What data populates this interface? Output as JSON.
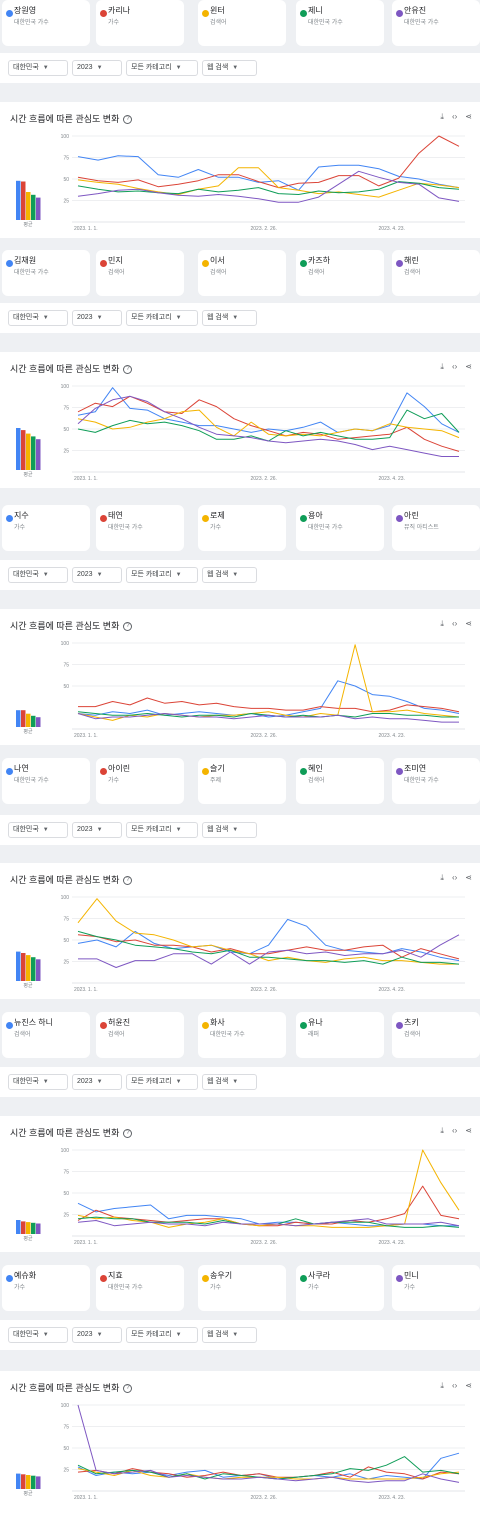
{
  "filters": {
    "region": "대한민국",
    "year": "2023",
    "category": "모든 카테고리",
    "search_type": "웹 검색"
  },
  "section_title": "시간 흐름에 따른 관심도 변화",
  "avg_label": "평균",
  "icons": {
    "help": "help-icon",
    "download": "download-icon",
    "embed": "embed-icon",
    "share": "share-icon",
    "caret": "caret-down-icon"
  },
  "term_colors": [
    "#4285f4",
    "#db4437",
    "#f4b400",
    "#0f9d58",
    "#7e57c2"
  ],
  "term_groups": [
    [
      {
        "name": "장원영",
        "type": "대한민국 가수"
      },
      {
        "name": "카리나",
        "type": "가수"
      },
      {
        "name": "윈터",
        "type": "검색어"
      },
      {
        "name": "제니",
        "type": "대한민국 가수"
      },
      {
        "name": "안유진",
        "type": "대한민국 가수"
      }
    ],
    [
      {
        "name": "김채원",
        "type": "대한민국 가수"
      },
      {
        "name": "민지",
        "type": "검색어"
      },
      {
        "name": "이서",
        "type": "검색어"
      },
      {
        "name": "카즈하",
        "type": "검색어"
      },
      {
        "name": "해린",
        "type": "검색어"
      }
    ],
    [
      {
        "name": "지수",
        "type": "가수"
      },
      {
        "name": "태연",
        "type": "대한민국 가수"
      },
      {
        "name": "로제",
        "type": "가수"
      },
      {
        "name": "용아",
        "type": "대한민국 가수"
      },
      {
        "name": "아린",
        "type": "뮤직 아티스트"
      }
    ],
    [
      {
        "name": "나연",
        "type": "대한민국 가수"
      },
      {
        "name": "아이린",
        "type": "가수"
      },
      {
        "name": "슬기",
        "type": "주제"
      },
      {
        "name": "혜인",
        "type": "검색어"
      },
      {
        "name": "조미연",
        "type": "대한민국 가수"
      }
    ],
    [
      {
        "name": "뉴진스 하니",
        "type": "검색어"
      },
      {
        "name": "허윤진",
        "type": "검색어"
      },
      {
        "name": "화사",
        "type": "대한민국 가수"
      },
      {
        "name": "유나",
        "type": "래퍼"
      },
      {
        "name": "츠키",
        "type": "검색어"
      }
    ],
    [
      {
        "name": "예슈화",
        "type": "가수"
      },
      {
        "name": "지효",
        "type": "대한민국 가수"
      },
      {
        "name": "송우기",
        "type": "가수"
      },
      {
        "name": "사쿠라",
        "type": "가수"
      },
      {
        "name": "민니",
        "type": "가수"
      }
    ]
  ],
  "chart_data": [
    {
      "type": "line",
      "x_ticks": [
        "2023. 1. 1.",
        "2023. 2. 26.",
        "2023. 4. 23."
      ],
      "y_ticks": [
        100,
        75,
        50,
        25
      ],
      "ylim": [
        0,
        100
      ],
      "averages": [
        56,
        55,
        40,
        36,
        32
      ],
      "series": [
        {
          "values": [
            76,
            72,
            77,
            76,
            55,
            52,
            61,
            52,
            52,
            46,
            48,
            37,
            64,
            66,
            66,
            62,
            53,
            50,
            44,
            40
          ]
        },
        {
          "values": [
            52,
            48,
            46,
            49,
            41,
            44,
            48,
            55,
            55,
            47,
            40,
            45,
            46,
            54,
            54,
            42,
            51,
            80,
            100,
            88
          ]
        },
        {
          "values": [
            49,
            46,
            44,
            39,
            35,
            32,
            38,
            42,
            63,
            63,
            40,
            37,
            33,
            35,
            32,
            29,
            37,
            45,
            43,
            40
          ]
        },
        {
          "values": [
            42,
            38,
            35,
            36,
            34,
            33,
            38,
            35,
            37,
            40,
            33,
            32,
            36,
            34,
            35,
            38,
            47,
            45,
            40,
            38
          ]
        },
        {
          "values": [
            30,
            33,
            37,
            38,
            34,
            31,
            30,
            32,
            30,
            27,
            23,
            23,
            29,
            44,
            59,
            52,
            46,
            44,
            28,
            24
          ]
        }
      ]
    },
    {
      "type": "line",
      "x_ticks": [
        "2023. 1. 1.",
        "2023. 2. 26.",
        "2023. 4. 23."
      ],
      "y_ticks": [
        100,
        75,
        50,
        25
      ],
      "ylim": [
        0,
        100
      ],
      "averages": [
        60,
        57,
        52,
        48,
        44
      ],
      "series": [
        {
          "values": [
            66,
            70,
            98,
            74,
            72,
            62,
            58,
            54,
            54,
            50,
            46,
            50,
            48,
            52,
            58,
            46,
            50,
            48,
            54,
            92,
            76,
            56,
            46
          ]
        },
        {
          "values": [
            70,
            80,
            76,
            88,
            80,
            70,
            68,
            84,
            76,
            62,
            54,
            48,
            42,
            46,
            44,
            38,
            40,
            42,
            44,
            52,
            38,
            30,
            24
          ]
        },
        {
          "values": [
            62,
            58,
            50,
            52,
            58,
            62,
            70,
            72,
            52,
            42,
            58,
            44,
            42,
            44,
            42,
            46,
            50,
            48,
            56,
            52,
            50,
            48,
            40
          ]
        },
        {
          "values": [
            50,
            46,
            54,
            60,
            56,
            58,
            54,
            48,
            38,
            38,
            42,
            36,
            48,
            42,
            46,
            42,
            38,
            38,
            40,
            72,
            62,
            68,
            46
          ]
        },
        {
          "values": [
            56,
            74,
            84,
            88,
            82,
            70,
            62,
            52,
            44,
            42,
            40,
            36,
            34,
            36,
            38,
            36,
            32,
            26,
            30,
            26,
            22,
            18,
            18
          ]
        }
      ]
    },
    {
      "type": "line",
      "x_ticks": [
        "2023. 1. 1.",
        "2023. 2. 26.",
        "2023. 4. 23."
      ],
      "y_ticks": [
        100,
        75,
        50
      ],
      "ylim": [
        0,
        100
      ],
      "averages": [
        24,
        24,
        19,
        16,
        14
      ],
      "series": [
        {
          "values": [
            18,
            16,
            20,
            18,
            22,
            16,
            18,
            20,
            18,
            16,
            18,
            14,
            16,
            20,
            24,
            56,
            50,
            40,
            38,
            32,
            24,
            22,
            18
          ]
        },
        {
          "values": [
            26,
            26,
            32,
            28,
            36,
            30,
            32,
            28,
            30,
            26,
            24,
            24,
            22,
            22,
            26,
            24,
            24,
            20,
            22,
            28,
            26,
            24,
            20
          ]
        },
        {
          "values": [
            18,
            14,
            10,
            16,
            14,
            18,
            16,
            14,
            16,
            16,
            18,
            20,
            16,
            14,
            18,
            16,
            98,
            20,
            20,
            22,
            18,
            16,
            14
          ]
        },
        {
          "values": [
            20,
            18,
            16,
            16,
            18,
            16,
            14,
            16,
            16,
            14,
            18,
            16,
            14,
            16,
            14,
            16,
            14,
            18,
            18,
            16,
            16,
            14,
            14
          ]
        },
        {
          "values": [
            18,
            12,
            14,
            14,
            16,
            18,
            16,
            14,
            14,
            12,
            14,
            16,
            14,
            14,
            14,
            16,
            12,
            14,
            12,
            12,
            10,
            8,
            8
          ]
        }
      ]
    },
    {
      "type": "line",
      "x_ticks": [
        "2023. 1. 1.",
        "2023. 2. 26.",
        "2023. 4. 23."
      ],
      "y_ticks": [
        100,
        75,
        50,
        25
      ],
      "ylim": [
        0,
        100
      ],
      "averages": [
        42,
        40,
        37,
        34,
        31
      ],
      "series": [
        {
          "values": [
            46,
            50,
            42,
            60,
            46,
            40,
            42,
            44,
            36,
            34,
            44,
            74,
            66,
            44,
            38,
            36,
            34,
            40,
            36,
            30,
            26
          ]
        },
        {
          "values": [
            56,
            54,
            48,
            50,
            44,
            44,
            42,
            36,
            40,
            34,
            34,
            38,
            42,
            38,
            38,
            42,
            44,
            30,
            40,
            34,
            28
          ]
        },
        {
          "values": [
            70,
            98,
            72,
            58,
            56,
            50,
            42,
            44,
            38,
            34,
            26,
            30,
            26,
            24,
            28,
            30,
            26,
            26,
            24,
            22,
            22
          ]
        },
        {
          "values": [
            60,
            54,
            50,
            44,
            42,
            40,
            36,
            34,
            38,
            30,
            30,
            28,
            26,
            26,
            24,
            26,
            22,
            30,
            24,
            24,
            22
          ]
        },
        {
          "values": [
            28,
            28,
            18,
            26,
            26,
            34,
            34,
            22,
            36,
            22,
            36,
            38,
            34,
            36,
            32,
            34,
            34,
            38,
            30,
            44,
            56
          ]
        }
      ]
    },
    {
      "type": "line",
      "x_ticks": [
        "2023. 1. 1.",
        "2023. 2. 26.",
        "2023. 4. 23."
      ],
      "y_ticks": [
        100,
        75,
        50,
        25
      ],
      "ylim": [
        0,
        100
      ],
      "averages": [
        20,
        18,
        17,
        16,
        15
      ],
      "series": [
        {
          "values": [
            38,
            28,
            32,
            34,
            36,
            20,
            24,
            24,
            22,
            20,
            14,
            16,
            16,
            14,
            16,
            14,
            12,
            12,
            14,
            14,
            12,
            12
          ]
        },
        {
          "values": [
            18,
            30,
            22,
            20,
            18,
            16,
            18,
            20,
            20,
            14,
            12,
            12,
            16,
            14,
            14,
            18,
            16,
            20,
            26,
            58,
            24,
            20
          ]
        },
        {
          "values": [
            24,
            20,
            22,
            18,
            16,
            10,
            14,
            16,
            20,
            14,
            12,
            14,
            12,
            12,
            10,
            10,
            10,
            12,
            14,
            100,
            62,
            30
          ]
        },
        {
          "values": [
            20,
            22,
            20,
            20,
            16,
            16,
            16,
            14,
            18,
            14,
            14,
            14,
            20,
            14,
            16,
            16,
            16,
            12,
            10,
            10,
            12,
            10
          ]
        },
        {
          "values": [
            16,
            18,
            12,
            14,
            16,
            14,
            14,
            12,
            16,
            14,
            14,
            14,
            12,
            14,
            16,
            18,
            20,
            14,
            14,
            14,
            16,
            12
          ]
        }
      ]
    },
    {
      "type": "line",
      "x_ticks": [
        "2023. 1. 1.",
        "2023. 2. 26.",
        "2023. 4. 23."
      ],
      "y_ticks": [
        100,
        75,
        50,
        25
      ],
      "ylim": [
        0,
        100
      ],
      "averages": [
        22,
        21,
        20,
        19,
        18
      ],
      "series": [
        {
          "values": [
            28,
            18,
            22,
            20,
            22,
            18,
            22,
            24,
            16,
            18,
            20,
            14,
            16,
            18,
            16,
            20,
            14,
            18,
            16,
            14,
            38,
            44
          ]
        },
        {
          "values": [
            22,
            24,
            20,
            26,
            22,
            20,
            16,
            18,
            22,
            18,
            20,
            16,
            16,
            18,
            22,
            16,
            28,
            22,
            20,
            14,
            22,
            20
          ]
        },
        {
          "values": [
            26,
            22,
            18,
            24,
            18,
            16,
            20,
            16,
            14,
            16,
            16,
            16,
            14,
            14,
            16,
            14,
            14,
            14,
            14,
            16,
            20,
            22
          ]
        },
        {
          "values": [
            30,
            20,
            22,
            24,
            22,
            16,
            20,
            14,
            20,
            18,
            16,
            14,
            16,
            18,
            20,
            26,
            24,
            30,
            40,
            22,
            24,
            20
          ]
        },
        {
          "values": [
            100,
            24,
            20,
            22,
            24,
            16,
            18,
            16,
            14,
            14,
            16,
            14,
            12,
            14,
            16,
            12,
            10,
            12,
            12,
            20,
            14,
            10
          ]
        }
      ]
    }
  ]
}
